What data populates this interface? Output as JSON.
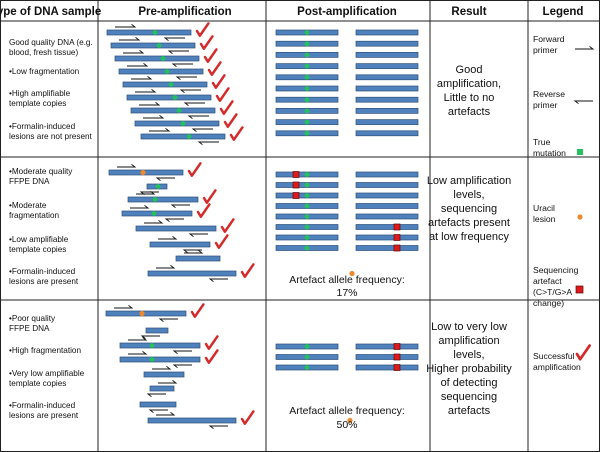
{
  "headers": {
    "sample": "Type of DNA sample",
    "pre": "Pre-amplification",
    "post": "Post-amplification",
    "result": "Result",
    "legend": "Legend"
  },
  "colors": {
    "strand": "#4f81bd",
    "strand_border": "#2e4f7a",
    "mutation": "#22c35d",
    "uracil": "#ed8a2e",
    "artefact": "#e01a1a",
    "tick": "#d42a2a"
  },
  "rows": [
    {
      "sample_lines": [
        "Good quality DNA (e.g.",
        "blood, fresh tissue)",
        "•Low fragmentation",
        "•High amplifiable",
        "template copies",
        "•Formalin-induced",
        "lesions are not present"
      ],
      "result_lines": [
        "Good",
        "amplification,",
        "Little to no",
        "artefacts"
      ],
      "artefact_label": "",
      "artefact_value": ""
    },
    {
      "sample_lines": [
        "•Moderate quality",
        "FFPE DNA",
        "•Moderate",
        "fragmentation",
        "•Low amplifiable",
        "template copies",
        "•Formalin-induced",
        "lesions are present"
      ],
      "result_lines": [
        "Low amplification",
        "levels,",
        "sequencing",
        "artefacts present",
        "at low frequency"
      ],
      "artefact_label": "Artefact allele frequency:",
      "artefact_value": "17%"
    },
    {
      "sample_lines": [
        "•Poor quality",
        "FFPE DNA",
        "•High fragmentation",
        "•Very low amplifiable",
        "template copies",
        "•Formalin-induced",
        "lesions are present"
      ],
      "result_lines": [
        "Low to very low",
        "amplification",
        "levels,",
        "Higher probability",
        "of detecting",
        "sequencing",
        "artefacts"
      ],
      "artefact_label": "Artefact allele frequency:",
      "artefact_value": "50%"
    }
  ],
  "legend": [
    {
      "lines": [
        "Forward",
        "primer"
      ],
      "icon": "forward-primer-icon"
    },
    {
      "lines": [
        "Reverse",
        "primer"
      ],
      "icon": "reverse-primer-icon"
    },
    {
      "lines": [
        "True",
        "mutation"
      ],
      "icon": "true-mutation-icon"
    },
    {
      "lines": [
        "Uracil",
        "lesion"
      ],
      "icon": "uracil-lesion-icon"
    },
    {
      "lines": [
        "Sequencing",
        "artefact",
        "(C>T/G>A",
        "change)"
      ],
      "icon": "sequencing-artefact-icon"
    },
    {
      "lines": [
        "Successful",
        "amplification"
      ],
      "icon": "successful-amplification-icon"
    }
  ]
}
